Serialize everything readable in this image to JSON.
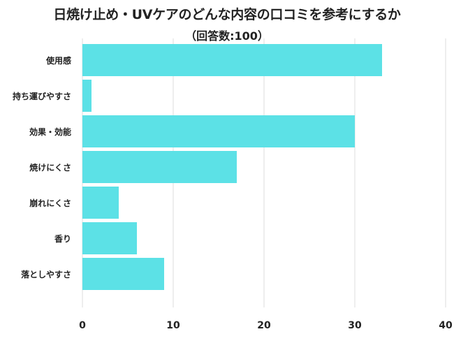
{
  "chart_data": {
    "type": "bar",
    "orientation": "horizontal",
    "title": "日焼け止め・UVケアのどんな内容の口コミを参考にするか",
    "subtitle": "（回答数:100）",
    "categories": [
      "使用感",
      "持ち運びやすさ",
      "効果・効能",
      "焼けにくさ",
      "崩れにくさ",
      "香り",
      "落としやすさ"
    ],
    "values": [
      33,
      1,
      30,
      17,
      4,
      6,
      9
    ],
    "xlim": [
      0,
      40
    ],
    "xticks": [
      0,
      10,
      20,
      30,
      40
    ],
    "grid": true,
    "bar_color": "#5ce1e6",
    "grid_color": "#dddddd",
    "text_color": "#222222"
  }
}
